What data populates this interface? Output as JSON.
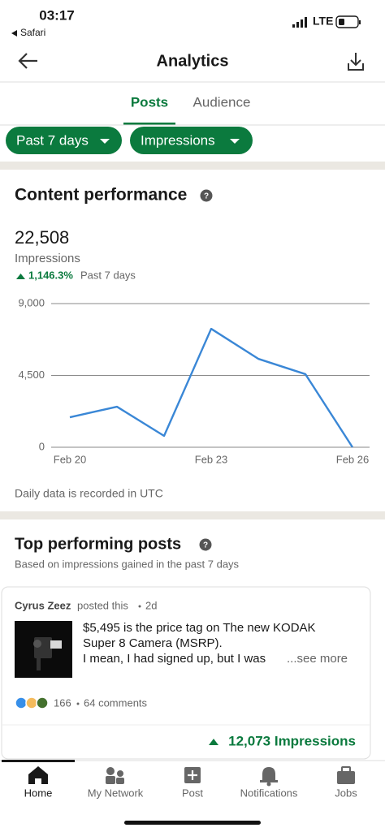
{
  "status_bar": {
    "time": "03:17",
    "back_app": "Safari",
    "network": "LTE"
  },
  "header": {
    "title": "Analytics"
  },
  "tabs": [
    "Posts",
    "Audience"
  ],
  "filters": [
    "Past 7 days",
    "Impressions"
  ],
  "content_performance": {
    "title": "Content performance",
    "total": "22,508",
    "metric": "Impressions",
    "change": "1,146.3%",
    "period": "Past 7 days",
    "footnote": "Daily data is recorded in UTC"
  },
  "chart_data": {
    "type": "line",
    "categories": [
      "Feb 20",
      null,
      null,
      "Feb 23",
      null,
      null,
      "Feb 26"
    ],
    "values": [
      1880,
      2540,
      710,
      7420,
      5540,
      4580,
      0
    ],
    "color": "#3a87d6",
    "ylim": [
      0,
      9000
    ],
    "yticks": [
      0,
      {
        "value": 4500,
        "label": "4,500"
      },
      {
        "value": 9000,
        "label": "9,000"
      }
    ],
    "grid": true
  },
  "top_posts": {
    "title": "Top performing posts",
    "subtitle": "Based on impressions gained in the past 7 days",
    "post": {
      "author": "Cyrus Zeez",
      "action": "posted this",
      "age": "2d",
      "text": [
        "$5,495 is the price tag on The new KODAK",
        "Super 8 Camera (MSRP).",
        "I mean, I had signed up, but I was"
      ],
      "see_more": "...see more",
      "reactions": "166",
      "comments": "64 comments",
      "impressions": "12,073 Impressions"
    }
  },
  "nav": [
    "Home",
    "My Network",
    "Post",
    "Notifications",
    "Jobs"
  ]
}
